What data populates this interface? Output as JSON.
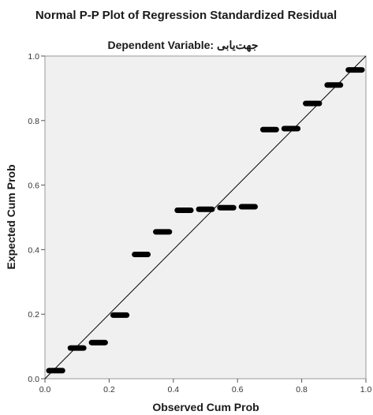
{
  "chart_data": {
    "type": "scatter",
    "title": "Normal P-P Plot of Regression Standardized Residual",
    "subtitle": "Dependent Variable: جهت‌یابی",
    "xlabel": "Observed Cum Prob",
    "ylabel": "Expected Cum Prob",
    "xlim": [
      0,
      1
    ],
    "ylim": [
      0,
      1
    ],
    "x_ticks": [
      "0.0",
      "0.2",
      "0.4",
      "0.6",
      "0.8",
      "1.0"
    ],
    "y_ticks": [
      "0.0",
      "0.2",
      "0.4",
      "0.6",
      "0.8",
      "1.0"
    ],
    "reference_line": "y = x",
    "grid": false,
    "legend": "none",
    "colors": {
      "plot_bg": "#f0f0f0",
      "points": "#000000",
      "line": "#000000",
      "frame": "#9a9a9a"
    },
    "series": [
      {
        "points": [
          {
            "x_from": 0.0,
            "x_to": 0.067,
            "y": 0.025
          },
          {
            "x_from": 0.067,
            "x_to": 0.133,
            "y": 0.095
          },
          {
            "x_from": 0.133,
            "x_to": 0.2,
            "y": 0.112
          },
          {
            "x_from": 0.2,
            "x_to": 0.267,
            "y": 0.197
          },
          {
            "x_from": 0.267,
            "x_to": 0.333,
            "y": 0.385
          },
          {
            "x_from": 0.333,
            "x_to": 0.4,
            "y": 0.455
          },
          {
            "x_from": 0.4,
            "x_to": 0.467,
            "y": 0.522
          },
          {
            "x_from": 0.467,
            "x_to": 0.533,
            "y": 0.525
          },
          {
            "x_from": 0.533,
            "x_to": 0.6,
            "y": 0.53
          },
          {
            "x_from": 0.6,
            "x_to": 0.667,
            "y": 0.533
          },
          {
            "x_from": 0.667,
            "x_to": 0.733,
            "y": 0.772
          },
          {
            "x_from": 0.733,
            "x_to": 0.8,
            "y": 0.775
          },
          {
            "x_from": 0.8,
            "x_to": 0.867,
            "y": 0.853
          },
          {
            "x_from": 0.867,
            "x_to": 0.933,
            "y": 0.91
          },
          {
            "x_from": 0.933,
            "x_to": 1.0,
            "y": 0.957
          }
        ]
      }
    ]
  }
}
